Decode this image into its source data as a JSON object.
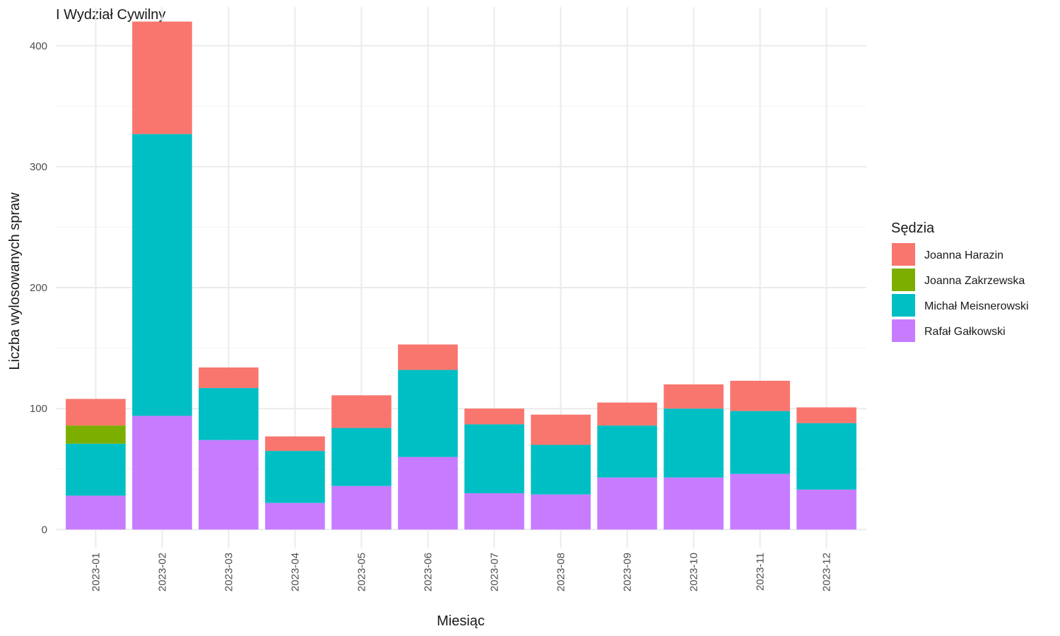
{
  "chart_data": {
    "type": "bar",
    "stacked": true,
    "title": "I Wydział Cywilny",
    "xlabel": "Miesiąc",
    "ylabel": "Liczba wylosowanych spraw",
    "ylim": [
      -15,
      432
    ],
    "yticks": [
      0,
      100,
      200,
      300,
      400
    ],
    "grid": true,
    "legend_position": "right",
    "legend_title": "Sędzia",
    "categories": [
      "2023-01",
      "2023-02",
      "2023-03",
      "2023-04",
      "2023-05",
      "2023-06",
      "2023-07",
      "2023-08",
      "2023-09",
      "2023-10",
      "2023-11",
      "2023-12"
    ],
    "series": [
      {
        "name": "Joanna Harazin",
        "color": "#F8766D",
        "values": [
          22,
          93,
          17,
          12,
          27,
          21,
          13,
          25,
          19,
          20,
          25,
          13
        ]
      },
      {
        "name": "Joanna Zakrzewska",
        "color": "#7CAE00",
        "values": [
          15,
          0,
          0,
          0,
          0,
          0,
          0,
          0,
          0,
          0,
          0,
          0
        ]
      },
      {
        "name": "Michał Meisnerowski",
        "color": "#00BFC4",
        "values": [
          43,
          233,
          43,
          43,
          48,
          72,
          57,
          41,
          43,
          57,
          52,
          55
        ]
      },
      {
        "name": "Rafał Gałkowski",
        "color": "#C77CFF",
        "values": [
          28,
          94,
          74,
          22,
          36,
          60,
          30,
          29,
          43,
          43,
          46,
          33
        ]
      }
    ],
    "stack_order_bottom_to_top": [
      "Rafał Gałkowski",
      "Michał Meisnerowski",
      "Joanna Zakrzewska",
      "Joanna Harazin"
    ]
  }
}
